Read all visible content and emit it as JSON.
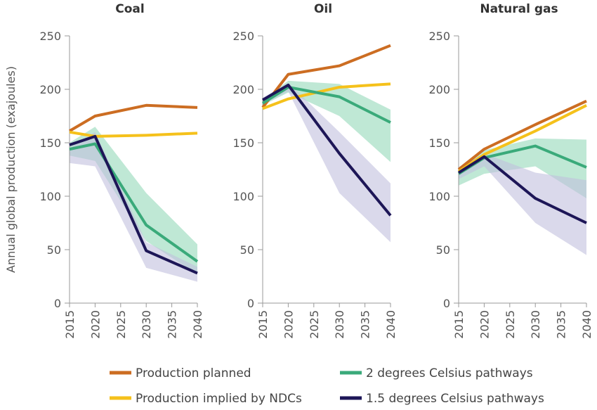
{
  "chart_data": {
    "type": "line",
    "ylabel": "Annual global production (exajoules)",
    "x_ticks": [
      "2015",
      "2020",
      "2025",
      "2030",
      "2035",
      "2040"
    ],
    "y_ticks": [
      "0",
      "50",
      "100",
      "150",
      "200",
      "250"
    ],
    "xlim": [
      2015,
      2040
    ],
    "ylim": [
      0,
      250
    ],
    "grid": false,
    "legend_position": "bottom",
    "colors": {
      "planned": "#cc6d22",
      "ndc": "#f5c11b",
      "two": "#3aaa7a",
      "onefive": "#1d1657",
      "two_band": "#9ddbbf",
      "onefive_band": "#c2bfdd"
    },
    "legend": [
      {
        "key": "planned",
        "label": "Production planned"
      },
      {
        "key": "two",
        "label": "2 degrees Celsius pathways"
      },
      {
        "key": "ndc",
        "label": "Production implied by NDCs"
      },
      {
        "key": "onefive",
        "label": "1.5 degrees Celsius pathways"
      }
    ],
    "panels": [
      {
        "title": "Coal",
        "series": [
          {
            "key": "planned",
            "x": [
              2015,
              2020,
              2030,
              2040
            ],
            "values": [
              161,
              175,
              185,
              183
            ]
          },
          {
            "key": "ndc",
            "x": [
              2015,
              2020,
              2030,
              2040
            ],
            "values": [
              160,
              156,
              157,
              159
            ]
          },
          {
            "key": "two",
            "x": [
              2015,
              2020,
              2030,
              2040
            ],
            "values": [
              144,
              149,
              73,
              39
            ]
          },
          {
            "key": "onefive",
            "x": [
              2015,
              2020,
              2030,
              2040
            ],
            "values": [
              148,
              156,
              49,
              28
            ]
          }
        ],
        "bands": [
          {
            "key": "two",
            "x": [
              2015,
              2020,
              2030,
              2040
            ],
            "low": [
              138,
              133,
              58,
              27
            ],
            "high": [
              150,
              165,
              103,
              55
            ]
          },
          {
            "key": "onefive",
            "x": [
              2015,
              2020,
              2030,
              2040
            ],
            "low": [
              131,
              128,
              33,
              20
            ],
            "high": [
              145,
              160,
              57,
              34
            ]
          }
        ]
      },
      {
        "title": "Oil",
        "series": [
          {
            "key": "planned",
            "x": [
              2015,
              2020,
              2030,
              2040
            ],
            "values": [
              183,
              214,
              222,
              241
            ]
          },
          {
            "key": "ndc",
            "x": [
              2015,
              2020,
              2030,
              2040
            ],
            "values": [
              182,
              191,
              202,
              205
            ]
          },
          {
            "key": "two",
            "x": [
              2015,
              2020,
              2030,
              2040
            ],
            "values": [
              187,
              202,
              193,
              169
            ]
          },
          {
            "key": "onefive",
            "x": [
              2015,
              2020,
              2030,
              2040
            ],
            "values": [
              190,
              204,
              140,
              82
            ]
          }
        ],
        "bands": [
          {
            "key": "two",
            "x": [
              2015,
              2020,
              2030,
              2040
            ],
            "low": [
              185,
              197,
              175,
              132
            ],
            "high": [
              190,
              208,
              205,
              181
            ]
          },
          {
            "key": "onefive",
            "x": [
              2015,
              2020,
              2030,
              2040
            ],
            "low": [
              186,
              198,
              103,
              57
            ],
            "high": [
              192,
              206,
              160,
              112
            ]
          }
        ]
      },
      {
        "title": "Natural gas",
        "series": [
          {
            "key": "planned",
            "x": [
              2015,
              2020,
              2030,
              2040
            ],
            "values": [
              125,
              144,
              167,
              189
            ]
          },
          {
            "key": "ndc",
            "x": [
              2015,
              2020,
              2030,
              2040
            ],
            "values": [
              123,
              139,
              161,
              185
            ]
          },
          {
            "key": "two",
            "x": [
              2015,
              2020,
              2030,
              2040
            ],
            "values": [
              121,
              136,
              147,
              127
            ]
          },
          {
            "key": "onefive",
            "x": [
              2015,
              2020,
              2030,
              2040
            ],
            "values": [
              122,
              137,
              98,
              75
            ]
          }
        ],
        "bands": [
          {
            "key": "two",
            "x": [
              2015,
              2020,
              2030,
              2040
            ],
            "low": [
              110,
              121,
              128,
              98
            ],
            "high": [
              127,
              143,
              154,
              153
            ]
          },
          {
            "key": "onefive",
            "x": [
              2015,
              2020,
              2030,
              2040
            ],
            "low": [
              116,
              128,
              75,
              45
            ],
            "high": [
              127,
              140,
              122,
              115
            ]
          }
        ]
      }
    ]
  }
}
